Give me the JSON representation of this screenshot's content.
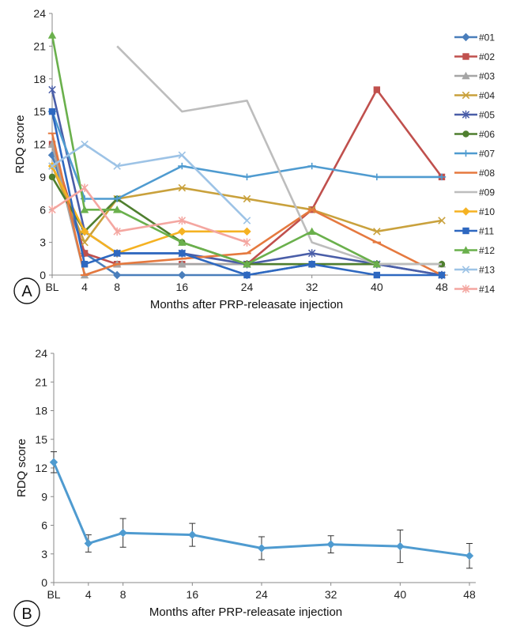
{
  "chart_data": [
    {
      "panel": "A",
      "type": "line",
      "categories": [
        "BL",
        "4",
        "8",
        "16",
        "24",
        "32",
        "40",
        "48"
      ],
      "x": [
        0,
        4,
        8,
        16,
        24,
        32,
        40,
        48
      ],
      "xlabel": "Months after PRP-releasate injection",
      "ylabel": "RDQ score",
      "ylim": [
        0,
        24
      ],
      "yticks": [
        0,
        3,
        6,
        9,
        12,
        15,
        18,
        21,
        24
      ],
      "grid": false,
      "legend": "right",
      "series": [
        {
          "name": "#01",
          "color": "#4a7ebb",
          "marker": "diamond",
          "values": [
            11,
            2,
            0,
            0,
            0,
            1,
            1,
            0
          ]
        },
        {
          "name": "#02",
          "color": "#c0504d",
          "marker": "square",
          "values": [
            12,
            2,
            1,
            1,
            1,
            6,
            17,
            9
          ]
        },
        {
          "name": "#03",
          "color": "#a5a5a5",
          "marker": "triangle",
          "values": [
            12,
            0,
            1,
            1,
            1,
            1,
            1,
            1
          ]
        },
        {
          "name": "#04",
          "color": "#c9a13c",
          "marker": "x",
          "values": [
            10,
            3,
            7,
            8,
            7,
            6,
            4,
            5
          ]
        },
        {
          "name": "#05",
          "color": "#4a5ea8",
          "marker": "star",
          "values": [
            17,
            4,
            2,
            2,
            1,
            2,
            1,
            0
          ]
        },
        {
          "name": "#06",
          "color": "#4f7f2f",
          "marker": "circle",
          "values": [
            9,
            4,
            7,
            3,
            1,
            1,
            1,
            1
          ]
        },
        {
          "name": "#07",
          "color": "#4f9bd0",
          "marker": "plus",
          "values": [
            15,
            7,
            7,
            10,
            9,
            10,
            9,
            9
          ]
        },
        {
          "name": "#08",
          "color": "#e5793f",
          "marker": "dash",
          "values": [
            13,
            0,
            1,
            1.5,
            2,
            6,
            3,
            0
          ]
        },
        {
          "name": "#09",
          "color": "#bdbdbd",
          "marker": "none",
          "values": [
            16,
            null,
            21,
            15,
            16,
            3,
            1,
            1
          ]
        },
        {
          "name": "#10",
          "color": "#f5b222",
          "marker": "diamond",
          "values": [
            10,
            4,
            2,
            4,
            4,
            null,
            null,
            null
          ]
        },
        {
          "name": "#11",
          "color": "#2e68c0",
          "marker": "square",
          "values": [
            15,
            1,
            2,
            2,
            0,
            1,
            0,
            0
          ]
        },
        {
          "name": "#12",
          "color": "#6ab04c",
          "marker": "triangle",
          "values": [
            22,
            6,
            6,
            3,
            1,
            4,
            1,
            null
          ]
        },
        {
          "name": "#13",
          "color": "#9dc3e6",
          "marker": "x",
          "values": [
            10,
            12,
            10,
            11,
            5,
            null,
            null,
            null
          ]
        },
        {
          "name": "#14",
          "color": "#f4a6a0",
          "marker": "star",
          "values": [
            6,
            8,
            4,
            5,
            3,
            null,
            null,
            null
          ]
        }
      ]
    },
    {
      "panel": "B",
      "type": "line",
      "categories": [
        "BL",
        "4",
        "8",
        "16",
        "24",
        "32",
        "40",
        "48"
      ],
      "x": [
        0,
        4,
        8,
        16,
        24,
        32,
        40,
        48
      ],
      "xlabel": "Months after PRP-releasate injection",
      "ylabel": "RDQ score",
      "ylim": [
        0,
        24
      ],
      "yticks": [
        0,
        3,
        6,
        9,
        12,
        15,
        18,
        21,
        24
      ],
      "grid": false,
      "series": [
        {
          "color": "#4f9bd0",
          "marker": "diamond",
          "values": [
            12.6,
            4.1,
            5.2,
            5.0,
            3.6,
            4.0,
            3.8,
            2.8
          ],
          "error": [
            1.1,
            0.9,
            1.5,
            1.2,
            1.2,
            0.9,
            1.7,
            1.3
          ]
        }
      ]
    }
  ],
  "panels": {
    "a_letter": "A",
    "b_letter": "B"
  }
}
